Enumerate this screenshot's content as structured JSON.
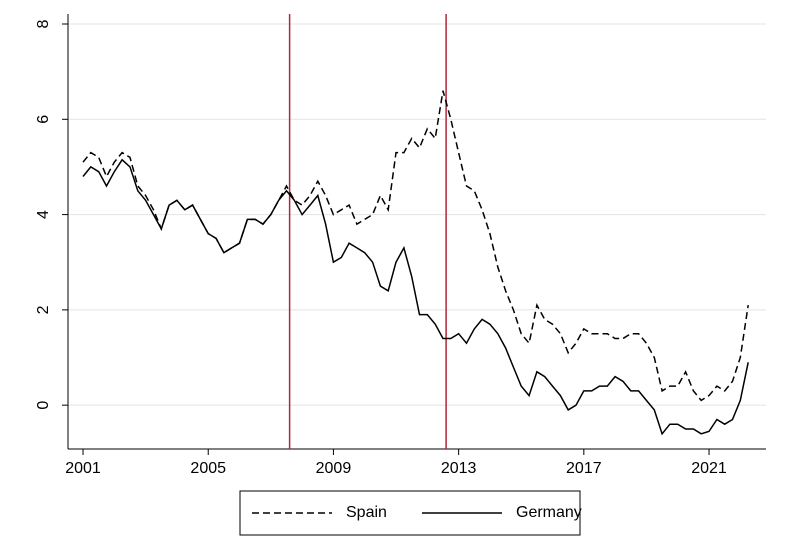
{
  "chart_data": {
    "type": "line",
    "x": [
      2001,
      2001.25,
      2001.5,
      2001.75,
      2002,
      2002.25,
      2002.5,
      2002.75,
      2003,
      2003.25,
      2003.5,
      2003.75,
      2004,
      2004.25,
      2004.5,
      2004.75,
      2005,
      2005.25,
      2005.5,
      2005.75,
      2006,
      2006.25,
      2006.5,
      2006.75,
      2007,
      2007.25,
      2007.5,
      2007.75,
      2008,
      2008.25,
      2008.5,
      2008.75,
      2009,
      2009.25,
      2009.5,
      2009.75,
      2010,
      2010.25,
      2010.5,
      2010.75,
      2011,
      2011.25,
      2011.5,
      2011.75,
      2012,
      2012.25,
      2012.5,
      2012.75,
      2013,
      2013.25,
      2013.5,
      2013.75,
      2014,
      2014.25,
      2014.5,
      2014.75,
      2015,
      2015.25,
      2015.5,
      2015.75,
      2016,
      2016.25,
      2016.5,
      2016.75,
      2017,
      2017.25,
      2017.5,
      2017.75,
      2018,
      2018.25,
      2018.5,
      2018.75,
      2019,
      2019.25,
      2019.5,
      2019.75,
      2020,
      2020.25,
      2020.5,
      2020.75,
      2021,
      2021.25,
      2021.5,
      2021.75,
      2022,
      2022.25
    ],
    "series": [
      {
        "name": "Spain",
        "color": "#000000",
        "dash": true,
        "values": [
          5.1,
          5.3,
          5.2,
          4.8,
          5.1,
          5.3,
          5.2,
          4.6,
          4.4,
          4.1,
          3.7,
          4.2,
          4.3,
          4.1,
          4.2,
          3.9,
          3.6,
          3.5,
          3.2,
          3.3,
          3.4,
          3.9,
          3.9,
          3.8,
          4.0,
          4.3,
          4.6,
          4.3,
          4.2,
          4.4,
          4.7,
          4.4,
          4.0,
          4.1,
          4.2,
          3.8,
          3.9,
          4.0,
          4.4,
          4.1,
          5.3,
          5.3,
          5.6,
          5.4,
          5.8,
          5.6,
          6.6,
          6.0,
          5.3,
          4.6,
          4.5,
          4.1,
          3.6,
          2.9,
          2.4,
          2.0,
          1.5,
          1.3,
          2.1,
          1.8,
          1.7,
          1.5,
          1.1,
          1.3,
          1.6,
          1.5,
          1.5,
          1.5,
          1.4,
          1.4,
          1.5,
          1.5,
          1.3,
          1.0,
          0.3,
          0.4,
          0.4,
          0.7,
          0.3,
          0.1,
          0.2,
          0.4,
          0.3,
          0.5,
          1.0,
          2.1
        ]
      },
      {
        "name": "Germany",
        "color": "#000000",
        "dash": false,
        "values": [
          4.8,
          5.0,
          4.9,
          4.6,
          4.9,
          5.15,
          5.0,
          4.5,
          4.3,
          4.0,
          3.7,
          4.2,
          4.3,
          4.1,
          4.2,
          3.9,
          3.6,
          3.5,
          3.2,
          3.3,
          3.4,
          3.9,
          3.9,
          3.8,
          4.0,
          4.3,
          4.5,
          4.3,
          4.0,
          4.2,
          4.4,
          3.8,
          3.0,
          3.1,
          3.4,
          3.3,
          3.2,
          3.0,
          2.5,
          2.4,
          3.0,
          3.3,
          2.7,
          1.9,
          1.9,
          1.7,
          1.4,
          1.4,
          1.5,
          1.3,
          1.6,
          1.8,
          1.7,
          1.5,
          1.2,
          0.8,
          0.4,
          0.2,
          0.7,
          0.6,
          0.4,
          0.2,
          -0.1,
          0.0,
          0.3,
          0.3,
          0.4,
          0.4,
          0.6,
          0.5,
          0.3,
          0.3,
          0.1,
          -0.1,
          -0.6,
          -0.4,
          -0.4,
          -0.5,
          -0.5,
          -0.6,
          -0.55,
          -0.3,
          -0.4,
          -0.3,
          0.1,
          0.9
        ]
      }
    ],
    "xlim": [
      2000.52,
      2022.82
    ],
    "xticks": [
      2001,
      2005,
      2009,
      2013,
      2017,
      2021
    ],
    "ylim": [
      -0.92,
      8.21
    ],
    "yticks": [
      0,
      2,
      4,
      6,
      8
    ],
    "grid": true,
    "vlines": [
      2007.6,
      2012.6
    ],
    "vline_color": "#b0283a",
    "legend": "bottom"
  }
}
